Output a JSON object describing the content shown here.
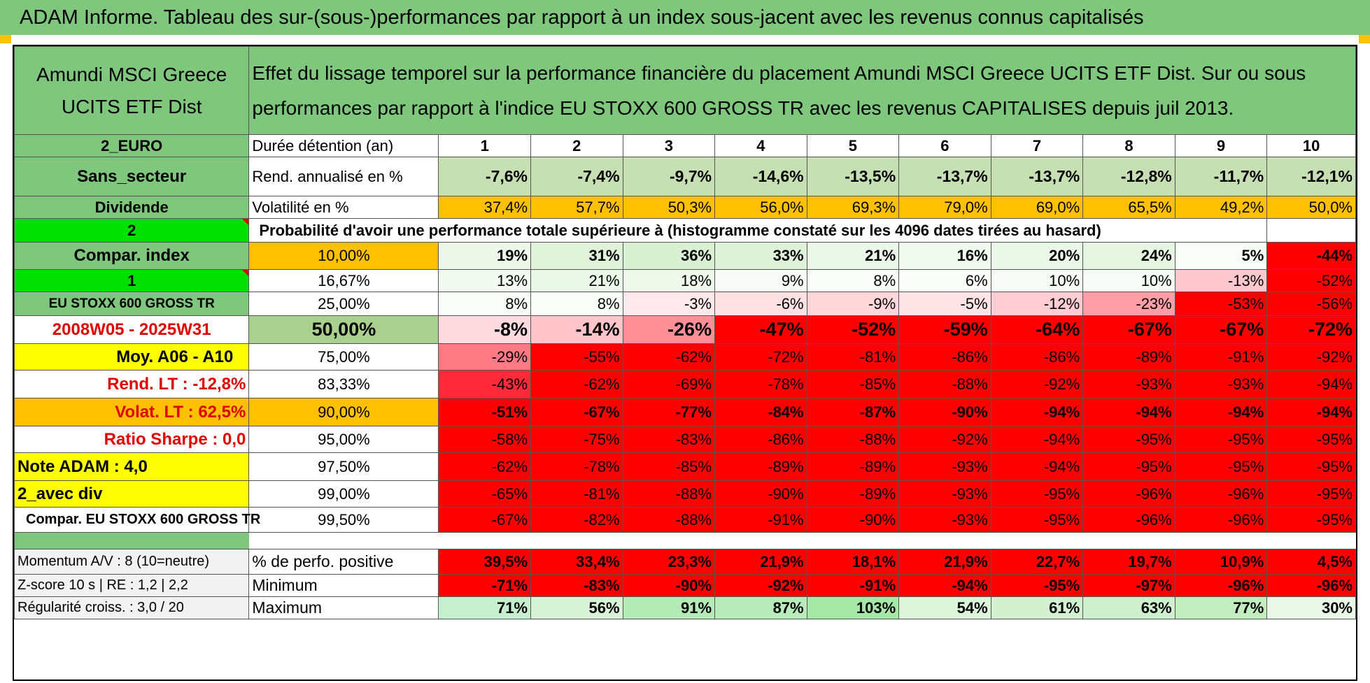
{
  "banner": "ADAM Informe. Tableau des sur-(sous-)performances par rapport à un index sous-jacent avec les revenus connus capitalisés",
  "fund_name": "Amundi MSCI Greece UCITS ETF Dist",
  "description": "Effet du lissage temporel sur la performance financière du placement Amundi MSCI Greece UCITS ETF Dist. Sur ou sous performances par rapport à l'indice EU STOXX 600 GROSS TR avec les revenus CAPITALISES depuis juil 2013.",
  "left": {
    "currency": "2_EURO",
    "sector": "Sans_secteur",
    "dividend": "Dividende",
    "two": "2",
    "compar_index": "Compar. index",
    "one": "1",
    "index_name": "EU STOXX 600 GROSS TR",
    "period": "2008W05 - 2025W31",
    "moy": "Moy. A06 - A10",
    "rend_lt": "Rend. LT :   -12,8%",
    "volat_lt": "Volat. LT :   62,5%",
    "sharpe": "Ratio Sharpe :    0,0",
    "note": "Note ADAM : 4,0",
    "avec_div": "2_avec div",
    "compar": "Compar. EU STOXX 600 GROSS TR",
    "momentum": "Momentum A/V : 8 (10=neutre)",
    "zscore": "Z-score 10 s | RE : 1,2 | 2,2",
    "regularite": "Régularité croiss. : 3,0 / 20"
  },
  "labels": {
    "duree": "Durée détention (an)",
    "rend": "Rend. annualisé en %",
    "vol": "Volatilité en %",
    "proba": "Probabilité d'avoir une performance totale supérieure à (histogramme constaté sur les 4096 dates tirées au hasard)",
    "pos": "% de perfo. positive",
    "min": "Minimum",
    "max": "Maximum"
  },
  "years": [
    "1",
    "2",
    "3",
    "4",
    "5",
    "6",
    "7",
    "8",
    "9",
    "10"
  ],
  "rend": [
    "-7,6%",
    "-7,4%",
    "-9,7%",
    "-14,6%",
    "-13,5%",
    "-13,7%",
    "-13,7%",
    "-12,8%",
    "-11,7%",
    "-12,1%"
  ],
  "vol": [
    "37,4%",
    "57,7%",
    "50,3%",
    "56,0%",
    "69,3%",
    "79,0%",
    "69,0%",
    "65,5%",
    "49,2%",
    "50,0%"
  ],
  "proba_rows": [
    {
      "p": "10,00%",
      "v": [
        "19%",
        "31%",
        "36%",
        "33%",
        "21%",
        "16%",
        "20%",
        "24%",
        "5%",
        "-44%"
      ],
      "bg": [
        "#edf8ea",
        "#e0f3da",
        "#d9f0d2",
        "#ddf2d6",
        "#ebf7e8",
        "#f0faee",
        "#ecf8e9",
        "#e6f5e2",
        "#f9fdf8",
        "#ff0000"
      ]
    },
    {
      "p": "16,67%",
      "v": [
        "13%",
        "21%",
        "18%",
        "9%",
        "8%",
        "6%",
        "10%",
        "10%",
        "-13%",
        "-52%"
      ],
      "bg": [
        "#f3fbf1",
        "#ebf7e8",
        "#eef9ec",
        "#f7fcf6",
        "#f8fdf7",
        "#fafdf9",
        "#f6fcf5",
        "#f6fcf5",
        "#ffc7ce",
        "#ff0000"
      ]
    },
    {
      "p": "25,00%",
      "v": [
        "8%",
        "8%",
        "-3%",
        "-6%",
        "-9%",
        "-5%",
        "-12%",
        "-23%",
        "-53%",
        "-56%"
      ],
      "bg": [
        "#f8fdf7",
        "#f8fdf7",
        "#ffe9ec",
        "#ffe1e4",
        "#ffd7db",
        "#ffe4e7",
        "#ffcdd2",
        "#ff9ea6",
        "#ff0000",
        "#ff0000"
      ]
    },
    {
      "p": "50,00%",
      "v": [
        "-8%",
        "-14%",
        "-26%",
        "-47%",
        "-52%",
        "-59%",
        "-64%",
        "-67%",
        "-67%",
        "-72%"
      ],
      "bg": [
        "#ffdade",
        "#ffc5cb",
        "#ff8e97",
        "#ff0000",
        "#ff0000",
        "#ff0000",
        "#ff0000",
        "#ff0000",
        "#ff0000",
        "#ff0000"
      ]
    },
    {
      "p": "75,00%",
      "v": [
        "-29%",
        "-55%",
        "-62%",
        "-72%",
        "-81%",
        "-86%",
        "-86%",
        "-89%",
        "-91%",
        "-92%"
      ],
      "bg": [
        "#ff7a85",
        "#ff0000",
        "#ff0000",
        "#ff0000",
        "#ff0000",
        "#ff0000",
        "#ff0000",
        "#ff0000",
        "#ff0000",
        "#ff0000"
      ]
    },
    {
      "p": "83,33%",
      "v": [
        "-43%",
        "-62%",
        "-69%",
        "-78%",
        "-85%",
        "-88%",
        "-92%",
        "-93%",
        "-93%",
        "-94%"
      ],
      "bg": [
        "#ff2a3a",
        "#ff0000",
        "#ff0000",
        "#ff0000",
        "#ff0000",
        "#ff0000",
        "#ff0000",
        "#ff0000",
        "#ff0000",
        "#ff0000"
      ]
    },
    {
      "p": "90,00%",
      "v": [
        "-51%",
        "-67%",
        "-77%",
        "-84%",
        "-87%",
        "-90%",
        "-94%",
        "-94%",
        "-94%",
        "-94%"
      ],
      "bg": [
        "#ff0000",
        "#ff0000",
        "#ff0000",
        "#ff0000",
        "#ff0000",
        "#ff0000",
        "#ff0000",
        "#ff0000",
        "#ff0000",
        "#ff0000"
      ]
    },
    {
      "p": "95,00%",
      "v": [
        "-58%",
        "-75%",
        "-83%",
        "-86%",
        "-88%",
        "-92%",
        "-94%",
        "-95%",
        "-95%",
        "-95%"
      ],
      "bg": [
        "#ff0000",
        "#ff0000",
        "#ff0000",
        "#ff0000",
        "#ff0000",
        "#ff0000",
        "#ff0000",
        "#ff0000",
        "#ff0000",
        "#ff0000"
      ]
    },
    {
      "p": "97,50%",
      "v": [
        "-62%",
        "-78%",
        "-85%",
        "-89%",
        "-89%",
        "-93%",
        "-94%",
        "-95%",
        "-95%",
        "-95%"
      ],
      "bg": [
        "#ff0000",
        "#ff0000",
        "#ff0000",
        "#ff0000",
        "#ff0000",
        "#ff0000",
        "#ff0000",
        "#ff0000",
        "#ff0000",
        "#ff0000"
      ]
    },
    {
      "p": "99,00%",
      "v": [
        "-65%",
        "-81%",
        "-88%",
        "-90%",
        "-89%",
        "-93%",
        "-95%",
        "-96%",
        "-96%",
        "-95%"
      ],
      "bg": [
        "#ff0000",
        "#ff0000",
        "#ff0000",
        "#ff0000",
        "#ff0000",
        "#ff0000",
        "#ff0000",
        "#ff0000",
        "#ff0000",
        "#ff0000"
      ]
    },
    {
      "p": "99,50%",
      "v": [
        "-67%",
        "-82%",
        "-88%",
        "-91%",
        "-90%",
        "-93%",
        "-95%",
        "-96%",
        "-96%",
        "-95%"
      ],
      "bg": [
        "#ff0000",
        "#ff0000",
        "#ff0000",
        "#ff0000",
        "#ff0000",
        "#ff0000",
        "#ff0000",
        "#ff0000",
        "#ff0000",
        "#ff0000"
      ]
    }
  ],
  "pos": [
    "39,5%",
    "33,4%",
    "23,3%",
    "21,9%",
    "18,1%",
    "21,9%",
    "22,7%",
    "19,7%",
    "10,9%",
    "4,5%"
  ],
  "min": [
    "-71%",
    "-83%",
    "-90%",
    "-92%",
    "-91%",
    "-94%",
    "-95%",
    "-97%",
    "-96%",
    "-96%"
  ],
  "max": [
    "71%",
    "56%",
    "91%",
    "87%",
    "103%",
    "54%",
    "61%",
    "63%",
    "77%",
    "30%"
  ],
  "max_bg": [
    "#c6efce",
    "#d9f3d8",
    "#b4ebb6",
    "#b9ecbb",
    "#a6e8a8",
    "#dbf4da",
    "#d3f1d1",
    "#cff0cd",
    "#c2edc1",
    "#eaf8e8"
  ],
  "colors": {
    "header_green": "#7ec77d",
    "orange": "#ffc000",
    "bright_green": "#00e000",
    "yellow": "#ffff00",
    "red": "#ff0000",
    "red_text": "#e00000"
  }
}
